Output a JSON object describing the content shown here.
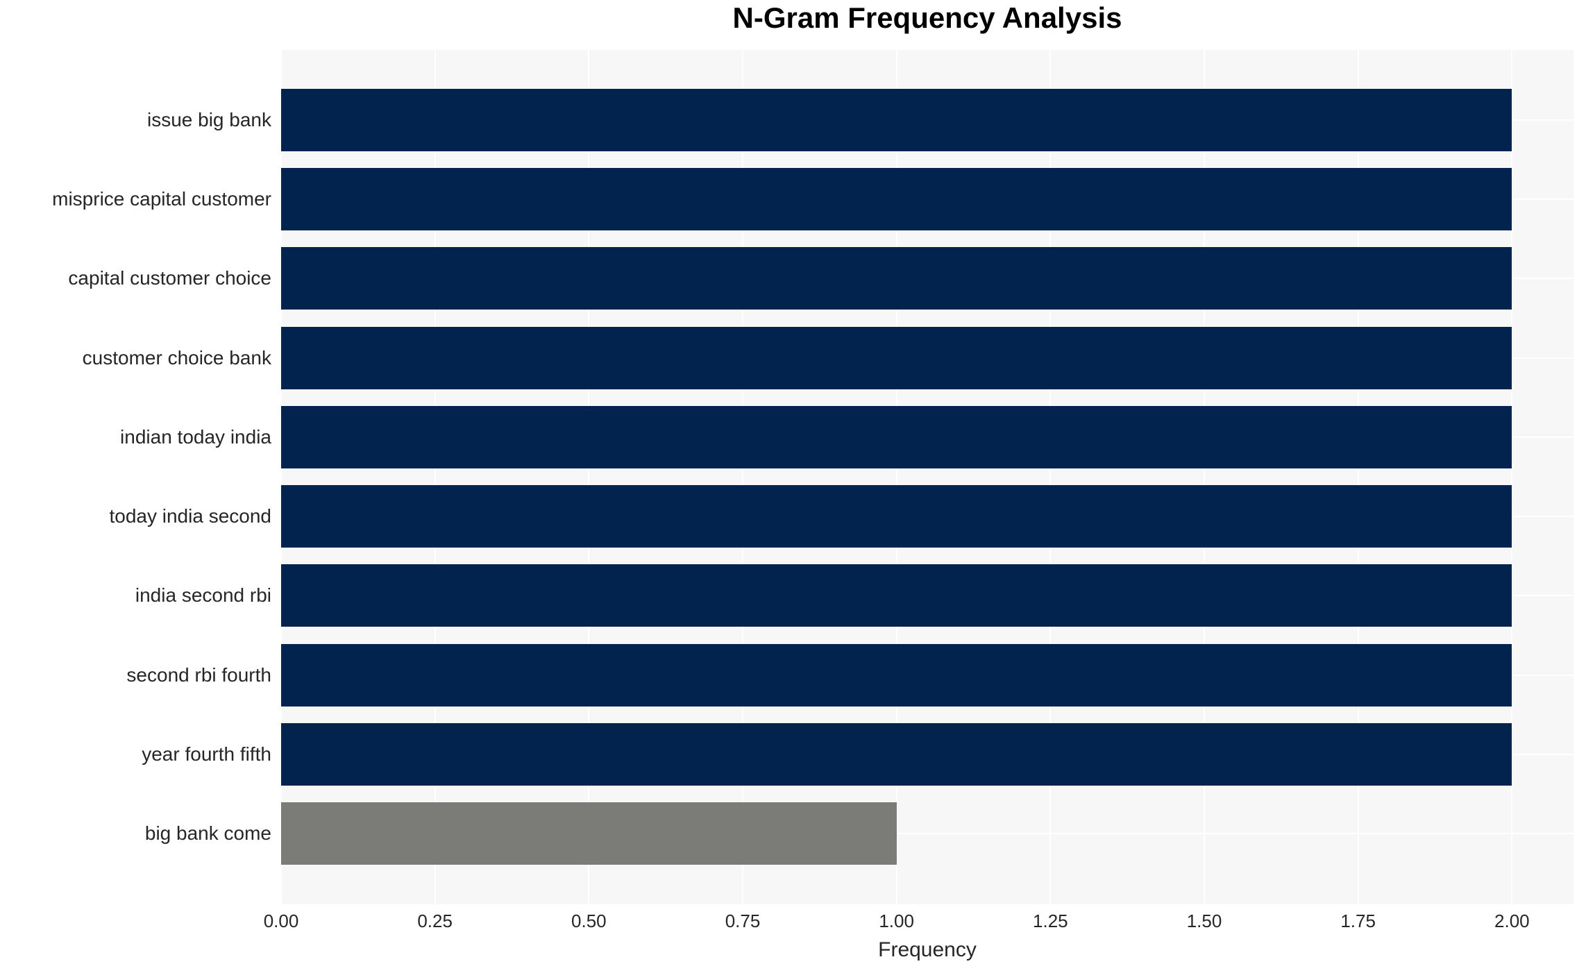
{
  "chart_data": {
    "type": "bar",
    "orientation": "horizontal",
    "title": "N-Gram Frequency Analysis",
    "xlabel": "Frequency",
    "ylabel": "",
    "categories": [
      "issue big bank",
      "misprice capital customer",
      "capital customer choice",
      "customer choice bank",
      "indian today india",
      "today india second",
      "india second rbi",
      "second rbi fourth",
      "year fourth fifth",
      "big bank come"
    ],
    "values": [
      2,
      2,
      2,
      2,
      2,
      2,
      2,
      2,
      2,
      1
    ],
    "bar_colors": [
      "#02234e",
      "#02234e",
      "#02234e",
      "#02234e",
      "#02234e",
      "#02234e",
      "#02234e",
      "#02234e",
      "#02234e",
      "#7b7b77"
    ],
    "xlim": [
      0,
      2.1
    ],
    "xticks": [
      0,
      0.25,
      0.5,
      0.75,
      1.0,
      1.25,
      1.5,
      1.75,
      2.0
    ],
    "xtick_labels": [
      "0.00",
      "0.25",
      "0.50",
      "0.75",
      "1.00",
      "1.25",
      "1.50",
      "1.75",
      "2.00"
    ],
    "grid": true,
    "grid_color": "#ffffff",
    "legend_position": "none",
    "colors": {
      "plot_background": "#f7f7f7",
      "figure_background": "#ffffff",
      "text": "#262626",
      "title": "#000000"
    }
  }
}
